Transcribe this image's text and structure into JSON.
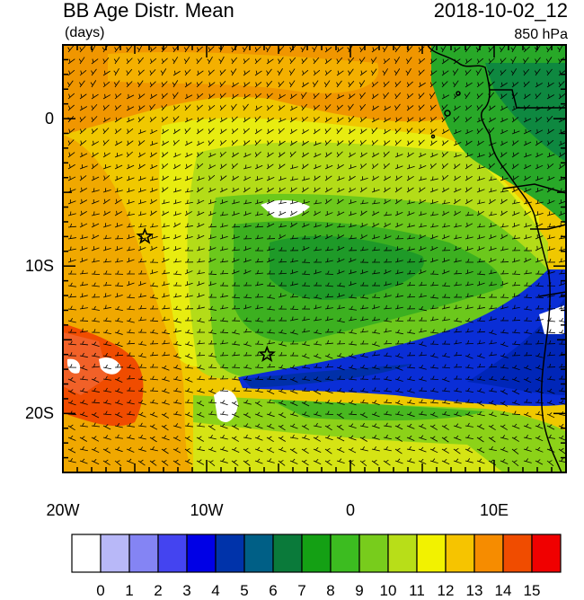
{
  "header": {
    "title": "BB Age Distr. Mean",
    "units": "(days)",
    "datetime": "2018-10-02_12",
    "level": "850 hPa"
  },
  "map": {
    "lat_labels": [
      {
        "text": "0",
        "lat": 0
      },
      {
        "text": "10S",
        "lat": -10
      },
      {
        "text": "20S",
        "lat": -20
      }
    ],
    "lon_labels": [
      {
        "text": "20W",
        "lon": -20
      },
      {
        "text": "10W",
        "lon": -10
      },
      {
        "text": "0",
        "lon": 0
      },
      {
        "text": "10E",
        "lon": 10
      }
    ],
    "extent": {
      "lon": [
        -20,
        15
      ],
      "lat": [
        -24,
        5
      ]
    },
    "markers": [
      {
        "name": "star-marker-west",
        "lon": -14.3,
        "lat": -8.0
      },
      {
        "name": "star-marker-south",
        "lon": -5.8,
        "lat": -16.0
      }
    ]
  },
  "colorbar": {
    "labels": [
      "0",
      "1",
      "2",
      "3",
      "4",
      "5",
      "6",
      "7",
      "8",
      "9",
      "10",
      "11",
      "12",
      "13",
      "14",
      "15"
    ],
    "colors": [
      "#ffffff",
      "#b8b8f8",
      "#8484f4",
      "#4444f0",
      "#0000e6",
      "#0033aa",
      "#005f86",
      "#0a7a3a",
      "#14a014",
      "#3cbc20",
      "#78cc1c",
      "#b8de18",
      "#f2f200",
      "#f6c400",
      "#f68c00",
      "#f04c00",
      "#f00000"
    ]
  }
}
